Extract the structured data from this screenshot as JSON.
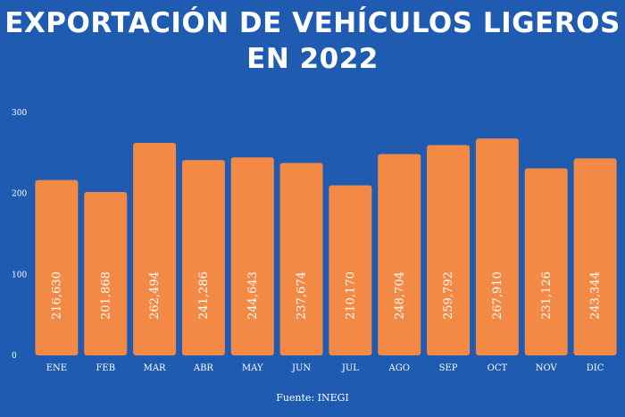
{
  "header": {
    "title_line1": "EXPORTACIÓN DE VEHÍCULOS LIGEROS",
    "title_line2": "EN 2022"
  },
  "footer": {
    "source": "Fuente: INEGI"
  },
  "colors": {
    "background": "#1f5bb0",
    "bar": "#f28a45",
    "text": "#ffffff"
  },
  "chart_data": {
    "type": "bar",
    "title": "EXPORTACIÓN DE VEHÍCULOS LIGEROS EN 2022",
    "xlabel": "",
    "ylabel": "",
    "categories": [
      "ENE",
      "FEB",
      "MAR",
      "ABR",
      "MAY",
      "JUN",
      "JUL",
      "AGO",
      "SEP",
      "OCT",
      "NOV",
      "DIC"
    ],
    "values": [
      216.63,
      201.868,
      262.494,
      241.286,
      244.643,
      237.674,
      210.17,
      248.704,
      259.792,
      267.91,
      231.126,
      243.344
    ],
    "value_labels": [
      "216,630",
      "201,868",
      "262,494",
      "241,286",
      "244,643",
      "237,674",
      "210,170",
      "248,704",
      "259,792",
      "267,910",
      "231,126",
      "243,344"
    ],
    "yticks": [
      0,
      100,
      200,
      300
    ],
    "ytick_labels": [
      "0",
      "100",
      "200",
      "300"
    ],
    "ylim": [
      0,
      300
    ],
    "grid": false,
    "legend": "none"
  }
}
